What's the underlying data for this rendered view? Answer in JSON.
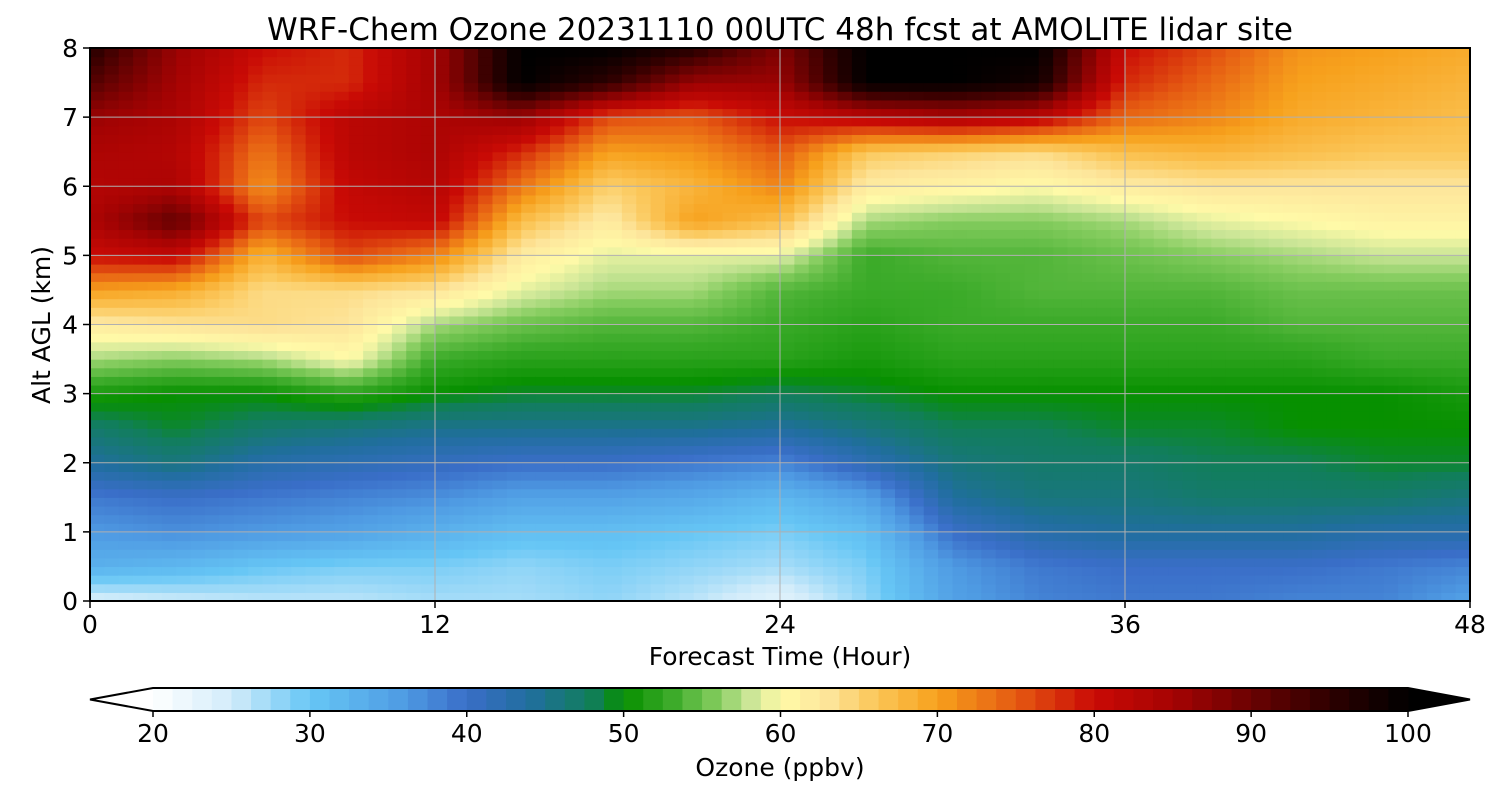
{
  "chart_data": {
    "type": "heatmap",
    "title": "WRF-Chem Ozone  20231110 00UTC 48h fcst at AMOLITE lidar site",
    "xlabel": "Forecast Time (Hour)",
    "ylabel": "Alt AGL (km)",
    "xlim": [
      0,
      48
    ],
    "ylim": [
      0,
      8
    ],
    "xticks": [
      0,
      12,
      24,
      36,
      48
    ],
    "yticks": [
      0,
      1,
      2,
      3,
      4,
      5,
      6,
      7,
      8
    ],
    "grid": true,
    "x": [
      0,
      3,
      6,
      9,
      12,
      15,
      18,
      21,
      24,
      27,
      30,
      33,
      36,
      39,
      42,
      45,
      48
    ],
    "y": [
      0,
      0.5,
      1,
      1.5,
      2,
      2.5,
      3,
      3.5,
      4,
      4.5,
      5,
      5.5,
      6,
      6.5,
      7,
      7.5,
      8
    ],
    "z": [
      [
        24,
        25,
        26,
        26,
        27,
        27,
        28,
        26,
        23,
        28,
        35,
        38,
        39,
        39,
        38,
        38,
        35
      ],
      [
        33,
        32,
        30,
        29,
        29,
        28,
        29,
        28,
        27,
        29,
        36,
        39,
        40,
        40,
        40,
        39,
        38
      ],
      [
        36,
        37,
        36,
        35,
        33,
        31,
        31,
        30,
        29,
        31,
        40,
        43,
        44,
        44,
        44,
        43,
        43
      ],
      [
        39,
        40,
        39,
        38,
        37,
        35,
        35,
        34,
        32,
        35,
        44,
        46,
        46,
        47,
        47,
        47,
        46
      ],
      [
        44,
        46,
        43,
        42,
        41,
        40,
        40,
        39,
        38,
        42,
        46,
        47,
        47,
        48,
        48,
        49,
        49
      ],
      [
        47,
        49,
        47,
        46,
        45,
        45,
        45,
        45,
        44,
        46,
        48,
        48,
        49,
        49,
        50,
        50,
        50
      ],
      [
        51,
        50,
        50,
        52,
        50,
        49,
        49,
        49,
        48,
        49,
        50,
        50,
        50,
        50,
        50,
        50,
        51
      ],
      [
        57,
        56,
        57,
        60,
        53,
        52,
        52,
        52,
        52,
        51,
        52,
        52,
        52,
        52,
        52,
        53,
        53
      ],
      [
        62,
        63,
        64,
        63,
        57,
        55,
        54,
        54,
        53,
        52,
        53,
        53,
        53,
        53,
        54,
        54,
        54
      ],
      [
        70,
        69,
        64,
        64,
        63,
        59,
        57,
        57,
        54,
        53,
        53,
        54,
        54,
        54,
        55,
        55,
        55
      ],
      [
        80,
        81,
        68,
        76,
        72,
        62,
        59,
        59,
        59,
        53,
        54,
        54,
        55,
        56,
        57,
        58,
        58
      ],
      [
        84,
        91,
        76,
        80,
        81,
        67,
        62,
        70,
        67,
        57,
        56,
        56,
        57,
        59,
        60,
        61,
        61
      ],
      [
        83,
        84,
        71,
        81,
        83,
        73,
        65,
        68,
        72,
        62,
        61,
        60,
        62,
        63,
        63,
        63,
        63
      ],
      [
        84,
        83,
        73,
        82,
        84,
        78,
        70,
        71,
        75,
        66,
        65,
        64,
        67,
        68,
        67,
        66,
        66
      ],
      [
        86,
        84,
        76,
        82,
        84,
        86,
        76,
        75,
        80,
        82,
        84,
        82,
        74,
        72,
        69,
        68,
        67
      ],
      [
        92,
        85,
        78,
        78,
        85,
        100,
        95,
        86,
        86,
        100,
        100,
        98,
        78,
        74,
        70,
        69,
        68
      ],
      [
        96,
        86,
        80,
        78,
        85,
        100,
        100,
        96,
        88,
        100,
        100,
        100,
        80,
        76,
        71,
        70,
        69
      ]
    ],
    "colorbar": {
      "label": "Ozone  (ppbv)",
      "min": 20,
      "max": 100,
      "ticks": [
        20,
        30,
        40,
        50,
        60,
        70,
        80,
        90,
        100
      ],
      "extend": "both",
      "colormap": [
        [
          20,
          "#ffffff"
        ],
        [
          25,
          "#d2ecfa"
        ],
        [
          30,
          "#66c6f5"
        ],
        [
          36,
          "#4f9be3"
        ],
        [
          40,
          "#3a6ec8"
        ],
        [
          44,
          "#206e9e"
        ],
        [
          48,
          "#117e5a"
        ],
        [
          50,
          "#079000"
        ],
        [
          53,
          "#3aaa28"
        ],
        [
          56,
          "#84cc5e"
        ],
        [
          58,
          "#c9e596"
        ],
        [
          60,
          "#fffaa8"
        ],
        [
          63,
          "#fde59b"
        ],
        [
          66,
          "#fbc75a"
        ],
        [
          70,
          "#f7a11c"
        ],
        [
          75,
          "#e55a12"
        ],
        [
          80,
          "#c90a05"
        ],
        [
          85,
          "#a50303"
        ],
        [
          90,
          "#6b0202"
        ],
        [
          95,
          "#2e0000"
        ],
        [
          100,
          "#000000"
        ]
      ]
    }
  }
}
